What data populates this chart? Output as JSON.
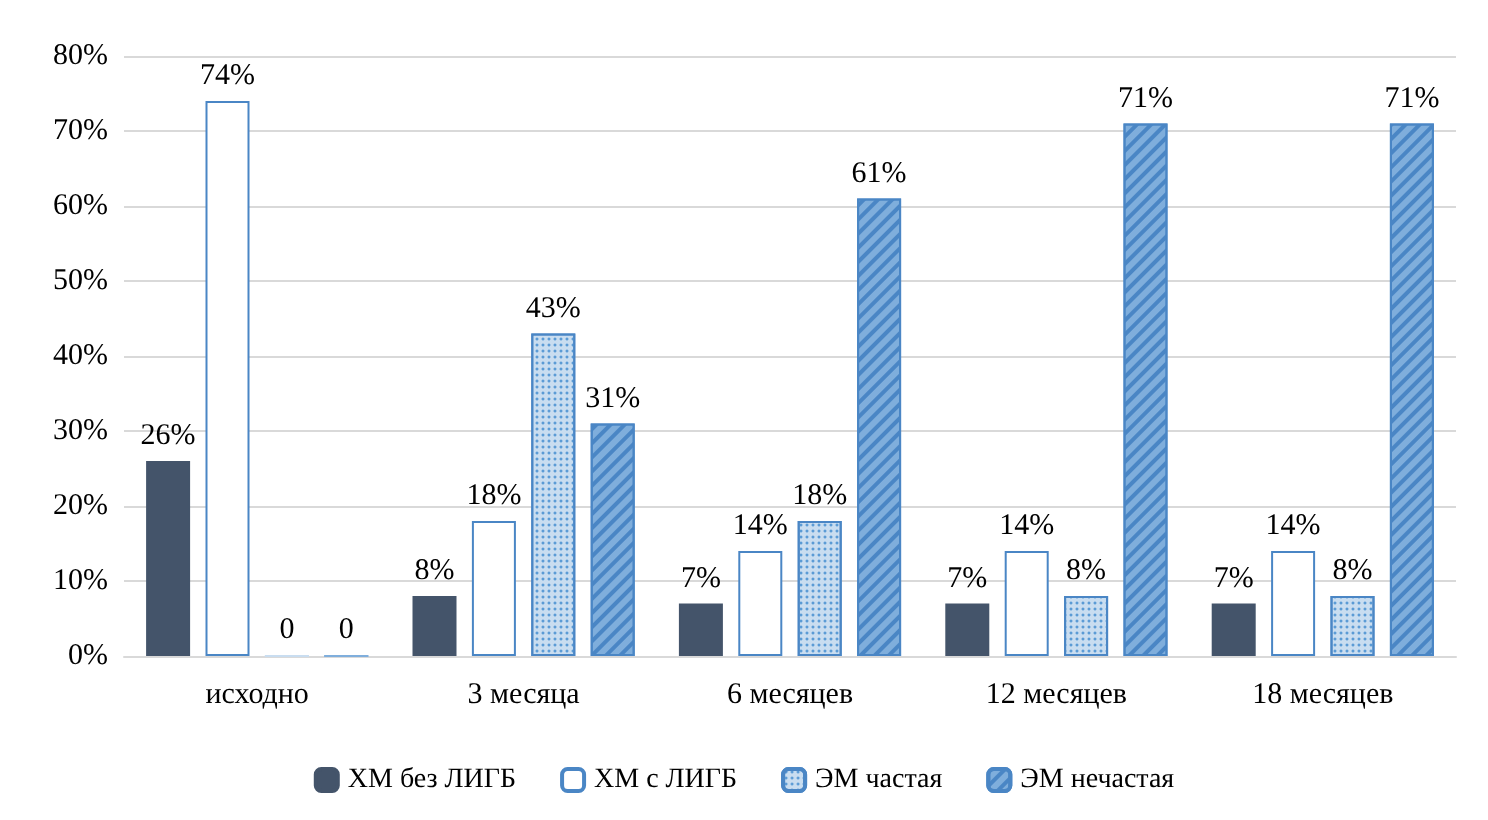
{
  "chart_data": {
    "type": "bar",
    "categories": [
      "исходно",
      "3 месяца",
      "6 месяцев",
      "12 месяцев",
      "18 месяцев"
    ],
    "series": [
      {
        "name": "ХМ без ЛИГБ",
        "color": "#44546a",
        "values": [
          26,
          8,
          7,
          7,
          7
        ],
        "value_labels": [
          "26%",
          "8%",
          "7%",
          "7%",
          "7%"
        ]
      },
      {
        "name": "ХМ с ЛИГБ",
        "color": "#ffffff",
        "values": [
          74,
          18,
          14,
          14,
          14
        ],
        "value_labels": [
          "74%",
          "18%",
          "14%",
          "14%",
          "14%"
        ]
      },
      {
        "name": "ЭМ частая",
        "color": "#c9ddf0",
        "values": [
          0,
          43,
          18,
          8,
          8
        ],
        "value_labels": [
          "0",
          "43%",
          "18%",
          "8%",
          "8%"
        ]
      },
      {
        "name": "ЭМ нечастая",
        "color": "#7faedc",
        "values": [
          0,
          31,
          61,
          71,
          71
        ],
        "value_labels": [
          "0",
          "31%",
          "61%",
          "71%",
          "71%"
        ]
      }
    ],
    "ylim": [
      0,
      80
    ],
    "yticks": [
      {
        "value": 0,
        "label": "0%"
      },
      {
        "value": 10,
        "label": "10%"
      },
      {
        "value": 20,
        "label": "20%"
      },
      {
        "value": 30,
        "label": "30%"
      },
      {
        "value": 40,
        "label": "40%"
      },
      {
        "value": 50,
        "label": "50%"
      },
      {
        "value": 60,
        "label": "60%"
      },
      {
        "value": 70,
        "label": "70%"
      },
      {
        "value": 80,
        "label": "80%"
      }
    ],
    "grid": "y",
    "legend": "bottom"
  }
}
